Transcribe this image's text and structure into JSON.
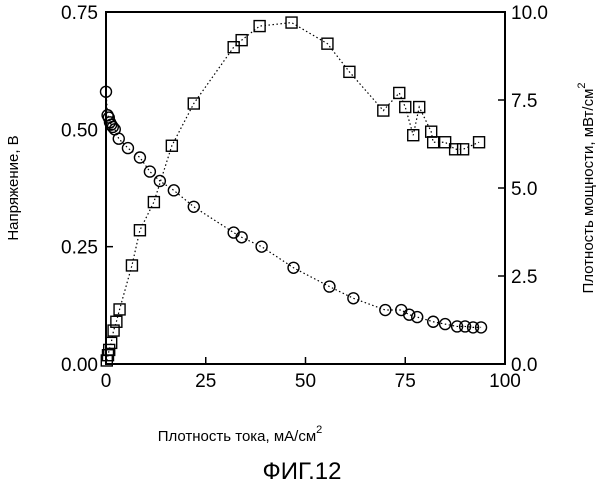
{
  "chart_data": {
    "type": "scatter",
    "x": {
      "label": "Плотность тока, мА/см",
      "label_superscript": "2",
      "lim": [
        0,
        100
      ],
      "ticks": [
        0,
        25,
        50,
        75,
        100
      ],
      "tick_labels": [
        "0",
        "25",
        "50",
        "75",
        "100"
      ]
    },
    "y_left": {
      "label": "Напряжение, В",
      "lim": [
        0,
        0.75
      ],
      "ticks": [
        0,
        0.25,
        0.5,
        0.75
      ],
      "tick_labels": [
        "0.00",
        "0.25",
        "0.50",
        "0.75"
      ]
    },
    "y_right": {
      "label": "Плотность мощности, мВт/см",
      "label_superscript": "2",
      "lim": [
        0,
        10
      ],
      "ticks": [
        0,
        2.5,
        5,
        7.5,
        10
      ],
      "tick_labels": [
        "0.0",
        "2.5",
        "5.0",
        "7.5",
        "10.0"
      ]
    },
    "series": [
      {
        "marker": "circle",
        "axis": "left",
        "points": [
          [
            0,
            0.58
          ],
          [
            0.4,
            0.53
          ],
          [
            0.7,
            0.525
          ],
          [
            1.0,
            0.515
          ],
          [
            1.3,
            0.51
          ],
          [
            1.7,
            0.505
          ],
          [
            2.2,
            0.5
          ],
          [
            3.2,
            0.48
          ],
          [
            5.5,
            0.46
          ],
          [
            8.5,
            0.44
          ],
          [
            11,
            0.41
          ],
          [
            13.5,
            0.39
          ],
          [
            17,
            0.37
          ],
          [
            22,
            0.335
          ],
          [
            32,
            0.28
          ],
          [
            34,
            0.27
          ],
          [
            39,
            0.25
          ],
          [
            47,
            0.205
          ],
          [
            56,
            0.165
          ],
          [
            62,
            0.14
          ],
          [
            70,
            0.115
          ],
          [
            74,
            0.115
          ],
          [
            76,
            0.105
          ],
          [
            78,
            0.1
          ],
          [
            82,
            0.09
          ],
          [
            85,
            0.085
          ],
          [
            88,
            0.08
          ],
          [
            90,
            0.08
          ],
          [
            92,
            0.078
          ],
          [
            94,
            0.078
          ]
        ]
      },
      {
        "marker": "square",
        "axis": "right",
        "line": "dotted",
        "points": [
          [
            0.2,
            0.1
          ],
          [
            0.5,
            0.25
          ],
          [
            0.8,
            0.4
          ],
          [
            1.3,
            0.6
          ],
          [
            1.9,
            0.95
          ],
          [
            2.6,
            1.2
          ],
          [
            3.4,
            1.55
          ],
          [
            6.5,
            2.8
          ],
          [
            8.5,
            3.8
          ],
          [
            12,
            4.6
          ],
          [
            16.5,
            6.2
          ],
          [
            22,
            7.4
          ],
          [
            32,
            9.0
          ],
          [
            34,
            9.2
          ],
          [
            38.5,
            9.6
          ],
          [
            46.5,
            9.7
          ],
          [
            55.5,
            9.1
          ],
          [
            61,
            8.3
          ],
          [
            69.5,
            7.2
          ],
          [
            73.5,
            7.7
          ],
          [
            75,
            7.3
          ],
          [
            77,
            6.5
          ],
          [
            78.5,
            7.3
          ],
          [
            81.5,
            6.6
          ],
          [
            82,
            6.3
          ],
          [
            85,
            6.3
          ],
          [
            87.5,
            6.1
          ],
          [
            89.5,
            6.1
          ],
          [
            93.5,
            6.3
          ]
        ]
      }
    ]
  },
  "caption": "ФИГ.12"
}
